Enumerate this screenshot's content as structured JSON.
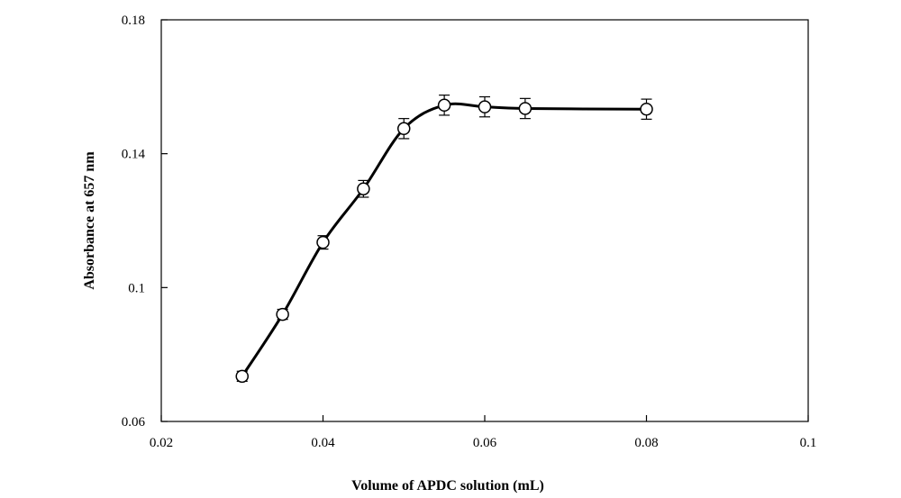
{
  "chart_data": {
    "type": "line",
    "title": "",
    "xlabel": "Volume of APDC solution (mL)",
    "ylabel": "Absorbance at 657 nm",
    "xlim": [
      0.02,
      0.1
    ],
    "ylim": [
      0.06,
      0.18
    ],
    "x_ticks": [
      "0.02",
      "0.04",
      "0.06",
      "0.08",
      "0.1"
    ],
    "y_ticks": [
      "0.06",
      "0.1",
      "0.14",
      "0.18"
    ],
    "grid": false,
    "legend": "none",
    "marker": "open-circle",
    "error_bars": true,
    "series": [
      {
        "x": [
          0.03,
          0.035,
          0.04,
          0.045,
          0.05,
          0.055,
          0.06,
          0.065,
          0.08
        ],
        "y": [
          0.0735,
          0.092,
          0.1135,
          0.1295,
          0.1475,
          0.1545,
          0.154,
          0.1535,
          0.1533
        ],
        "error": [
          0.0015,
          0.0015,
          0.002,
          0.0025,
          0.003,
          0.003,
          0.003,
          0.003,
          0.003
        ]
      }
    ]
  }
}
